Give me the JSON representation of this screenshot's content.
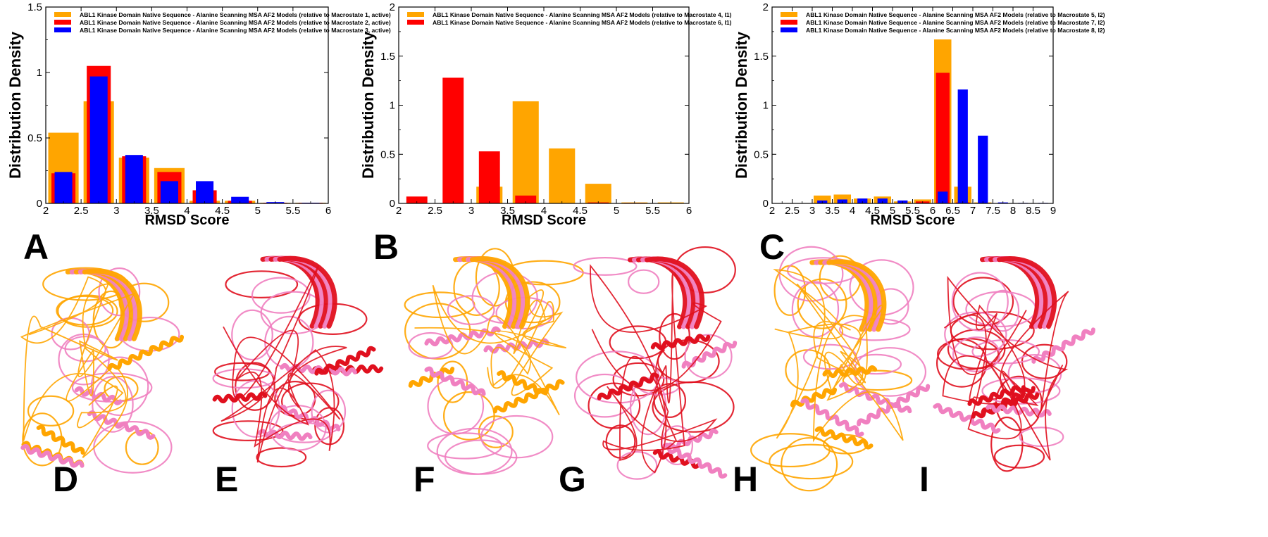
{
  "panel_letters": [
    "A",
    "B",
    "C",
    "D",
    "E",
    "F",
    "G",
    "H",
    "I"
  ],
  "colors": {
    "orange": "#FFA500",
    "red": "#FF0000",
    "blue": "#0000FF",
    "pink": "#F080C0",
    "gold": "#E8A000",
    "crimson": "#E0101E"
  },
  "structures": [
    {
      "letter": "D",
      "colors": [
        "orange",
        "pink"
      ]
    },
    {
      "letter": "E",
      "colors": [
        "crimson",
        "pink"
      ]
    },
    {
      "letter": "F",
      "colors": [
        "orange",
        "pink"
      ]
    },
    {
      "letter": "G",
      "colors": [
        "crimson",
        "pink"
      ]
    },
    {
      "letter": "H",
      "colors": [
        "orange",
        "pink"
      ]
    },
    {
      "letter": "I",
      "colors": [
        "crimson",
        "pink"
      ]
    }
  ],
  "chart_data": [
    {
      "type": "bar",
      "panel": "A",
      "xlabel": "RMSD Score",
      "ylabel": "Distribution Density",
      "xlim": [
        2,
        6
      ],
      "ylim": [
        0,
        1.5
      ],
      "xticks": [
        "2",
        "2.5",
        "3",
        "3.5",
        "4",
        "4.5",
        "5",
        "5.5",
        "6"
      ],
      "yticks": [
        "0",
        "0.5",
        "1",
        "1.5"
      ],
      "grid": false,
      "legend_position": "top-left",
      "series": [
        {
          "name": "ABL1 Kinase Domain Native Sequence - Alanine Scanning MSA AF2 Models (relative to Macrostate 1, active)",
          "color": "orange",
          "bars": [
            [
              2.25,
              0.54
            ],
            [
              2.75,
              0.78
            ],
            [
              3.25,
              0.35
            ],
            [
              3.75,
              0.27
            ],
            [
              4.25,
              0.02
            ],
            [
              4.75,
              0.02
            ],
            [
              5.25,
              0.005
            ],
            [
              5.75,
              0.005
            ]
          ]
        },
        {
          "name": "ABL1 Kinase Domain Native Sequence - Alanine Scanning MSA AF2 Models (relative to Macrostate 2, active)",
          "color": "red",
          "bars": [
            [
              2.25,
              0.23
            ],
            [
              2.75,
              1.05
            ],
            [
              3.25,
              0.36
            ],
            [
              3.75,
              0.24
            ],
            [
              4.25,
              0.1
            ],
            [
              4.75,
              0.02
            ],
            [
              5.25,
              0.005
            ],
            [
              5.75,
              0.005
            ]
          ]
        },
        {
          "name": "ABL1 Kinase Domain Native Sequence - Alanine Scanning MSA AF2 Models (relative to Macrostate 3, active)",
          "color": "blue",
          "bars": [
            [
              2.25,
              0.24
            ],
            [
              2.75,
              0.97
            ],
            [
              3.25,
              0.37
            ],
            [
              3.75,
              0.17
            ],
            [
              4.25,
              0.17
            ],
            [
              4.75,
              0.05
            ],
            [
              5.25,
              0.01
            ],
            [
              5.75,
              0.005
            ]
          ]
        }
      ]
    },
    {
      "type": "bar",
      "panel": "B",
      "xlabel": "RMSD Score",
      "ylabel": "Distribution Density",
      "xlim": [
        2,
        6
      ],
      "ylim": [
        0,
        2
      ],
      "xticks": [
        "2",
        "2.5",
        "3",
        "3.5",
        "4",
        "4.5",
        "5",
        "5.5",
        "6"
      ],
      "yticks": [
        "0",
        "0.5",
        "1",
        "1.5",
        "2"
      ],
      "grid": false,
      "legend_position": "top-left",
      "series": [
        {
          "name": "ABL1 Kinase Domain Native Sequence - Alanine Scanning MSA AF2 Models (relative to Macrostate 4, I1)",
          "color": "orange",
          "bars": [
            [
              3.25,
              0.17
            ],
            [
              3.75,
              1.04
            ],
            [
              4.25,
              0.56
            ],
            [
              4.75,
              0.2
            ],
            [
              5.25,
              0.01
            ],
            [
              5.75,
              0.01
            ]
          ]
        },
        {
          "name": "ABL1 Kinase Domain Native Sequence - Alanine Scanning MSA AF2 Models (relative to Macrostate 6, I1)",
          "color": "red",
          "bars": [
            [
              2.25,
              0.07
            ],
            [
              2.75,
              1.28
            ],
            [
              3.25,
              0.53
            ],
            [
              3.75,
              0.08
            ],
            [
              4.75,
              0.01
            ],
            [
              5.25,
              0.005
            ]
          ]
        }
      ]
    },
    {
      "type": "bar",
      "panel": "C",
      "xlabel": "RMSD Score",
      "ylabel": "Distribution Density",
      "xlim": [
        2,
        9
      ],
      "ylim": [
        0,
        2
      ],
      "xticks": [
        "2",
        "2.5",
        "3",
        "3.5",
        "4",
        "4.5",
        "5",
        "5.5",
        "6",
        "6.5",
        "7",
        "7.5",
        "8",
        "8.5",
        "9"
      ],
      "yticks": [
        "0",
        "0.5",
        "1",
        "1.5",
        "2"
      ],
      "grid": false,
      "legend_position": "top-left",
      "series": [
        {
          "name": "ABL1 Kinase Domain Native Sequence - Alanine Scanning MSA AF2 Models (relative to Macrostate 5, I2)",
          "color": "orange",
          "bars": [
            [
              3.25,
              0.08
            ],
            [
              3.75,
              0.09
            ],
            [
              4.25,
              0.05
            ],
            [
              4.75,
              0.07
            ],
            [
              5.25,
              0.02
            ],
            [
              5.75,
              0.04
            ],
            [
              6.25,
              1.67
            ],
            [
              6.75,
              0.17
            ],
            [
              7.25,
              0.01
            ]
          ]
        },
        {
          "name": "ABL1 Kinase Domain Native Sequence - Alanine Scanning MSA AF2 Models (relative to Macrostate 7, I2)",
          "color": "red",
          "bars": [
            [
              5.75,
              0.02
            ],
            [
              6.25,
              1.33
            ],
            [
              6.75,
              0.01
            ]
          ]
        },
        {
          "name": "ABL1 Kinase Domain Native Sequence - Alanine Scanning MSA AF2 Models (relative to Macrostate 8, I2)",
          "color": "blue",
          "bars": [
            [
              3.25,
              0.03
            ],
            [
              3.75,
              0.04
            ],
            [
              4.25,
              0.05
            ],
            [
              4.75,
              0.05
            ],
            [
              5.25,
              0.03
            ],
            [
              6.25,
              0.12
            ],
            [
              6.75,
              1.16
            ],
            [
              7.25,
              0.69
            ],
            [
              7.75,
              0.01
            ],
            [
              8.25,
              0.005
            ],
            [
              8.75,
              0.005
            ]
          ]
        }
      ]
    }
  ]
}
